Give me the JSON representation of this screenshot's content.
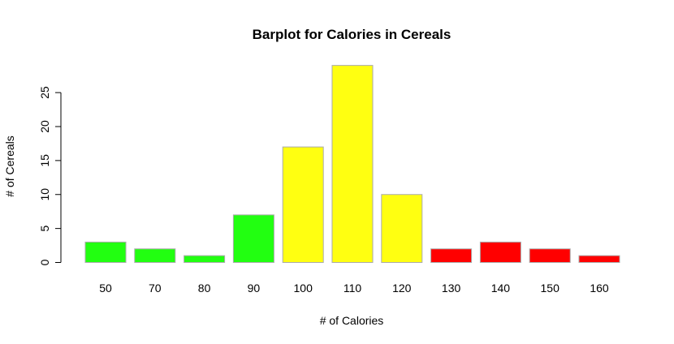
{
  "chart_data": {
    "type": "bar",
    "title": "Barplot for Calories in Cereals",
    "xlabel": "# of Calories",
    "ylabel": "# of Cereals",
    "categories": [
      "50",
      "70",
      "80",
      "90",
      "100",
      "110",
      "120",
      "130",
      "140",
      "150",
      "160"
    ],
    "values": [
      3,
      2,
      1,
      7,
      17,
      29,
      10,
      2,
      3,
      2,
      1
    ],
    "bar_colors": [
      "#22ff11",
      "#22ff11",
      "#22ff11",
      "#22ff11",
      "#ffff11",
      "#ffff11",
      "#ffff11",
      "#ff0000",
      "#ff0000",
      "#ff0000",
      "#ff0000"
    ],
    "ylim": [
      0,
      29
    ],
    "yticks": [
      0,
      5,
      10,
      15,
      20,
      25
    ],
    "grid": false,
    "legend": "none"
  }
}
